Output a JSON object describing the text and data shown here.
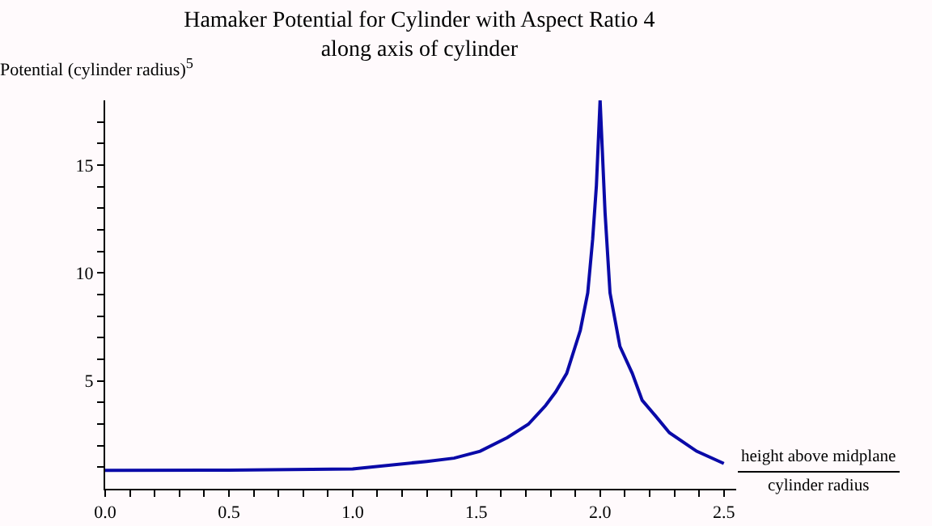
{
  "chart_data": {
    "type": "line",
    "title": "Hamaker Potential for Cylinder with Aspect Ratio 4\nalong axis of cylinder",
    "ylabel": "Potential (cylinder radius)$^{5}$",
    "xlabel": "height above midplane\ncylinder radius",
    "x": [
      0,
      0.5,
      1.0,
      1.3,
      1.41,
      1.515,
      1.625,
      1.71,
      1.78,
      1.82,
      1.865,
      1.92,
      1.95,
      1.97,
      1.985,
      2.0,
      2.02,
      2.04,
      2.06,
      2.08,
      2.13,
      2.17,
      2.225,
      2.28,
      2.39,
      2.5
    ],
    "series": [
      {
        "color": "#0a0aa8",
        "values": [
          0.85,
          0.86,
          0.92,
          1.27,
          1.42,
          1.74,
          2.37,
          2.99,
          3.86,
          4.48,
          5.35,
          7.34,
          9.08,
          11.57,
          14.05,
          18,
          12.8,
          9.08,
          7.84,
          6.6,
          5.35,
          4.1,
          3.36,
          2.6,
          1.74,
          1.17
        ]
      }
    ],
    "xlim": [
      0,
      2.55
    ],
    "ylim": [
      0,
      18
    ],
    "xticks": [
      {
        "value": 0,
        "label": "0.0"
      },
      0.5,
      {
        "value": 1,
        "label": "1.0"
      },
      1.5,
      {
        "value": 2,
        "label": "2.0"
      },
      2.5,
      {
        "value": 0.1,
        "label": null
      },
      {
        "value": 0.2,
        "label": null
      },
      {
        "value": 0.3,
        "label": null
      },
      {
        "value": 0.4,
        "label": null
      },
      {
        "value": 0.6,
        "label": null
      },
      {
        "value": 0.7,
        "label": null
      },
      {
        "value": 0.8,
        "label": null
      },
      {
        "value": 0.9,
        "label": null
      },
      {
        "value": 1.1,
        "label": null
      },
      {
        "value": 1.2,
        "label": null
      },
      {
        "value": 1.3,
        "label": null
      },
      {
        "value": 1.4,
        "label": null
      },
      {
        "value": 1.6,
        "label": null
      },
      {
        "value": 1.7,
        "label": null
      },
      {
        "value": 1.8,
        "label": null
      },
      {
        "value": 1.9,
        "label": null
      },
      {
        "value": 2.1,
        "label": null
      },
      {
        "value": 2.2,
        "label": null
      },
      {
        "value": 2.3,
        "label": null
      },
      {
        "value": 2.4,
        "label": null
      }
    ],
    "yticks": [
      5,
      10,
      15,
      {
        "value": 1,
        "label": null
      },
      {
        "value": 2,
        "label": null
      },
      {
        "value": 3,
        "label": null
      },
      {
        "value": 4,
        "label": null
      },
      {
        "value": 6,
        "label": null
      },
      {
        "value": 7,
        "label": null
      },
      {
        "value": 8,
        "label": null
      },
      {
        "value": 9,
        "label": null
      },
      {
        "value": 11,
        "label": null
      },
      {
        "value": 12,
        "label": null
      },
      {
        "value": 13,
        "label": null
      },
      {
        "value": 14,
        "label": null
      },
      {
        "value": 16,
        "label": null
      },
      {
        "value": 17,
        "label": null
      }
    ],
    "marker": "none",
    "line_style": "solid"
  }
}
